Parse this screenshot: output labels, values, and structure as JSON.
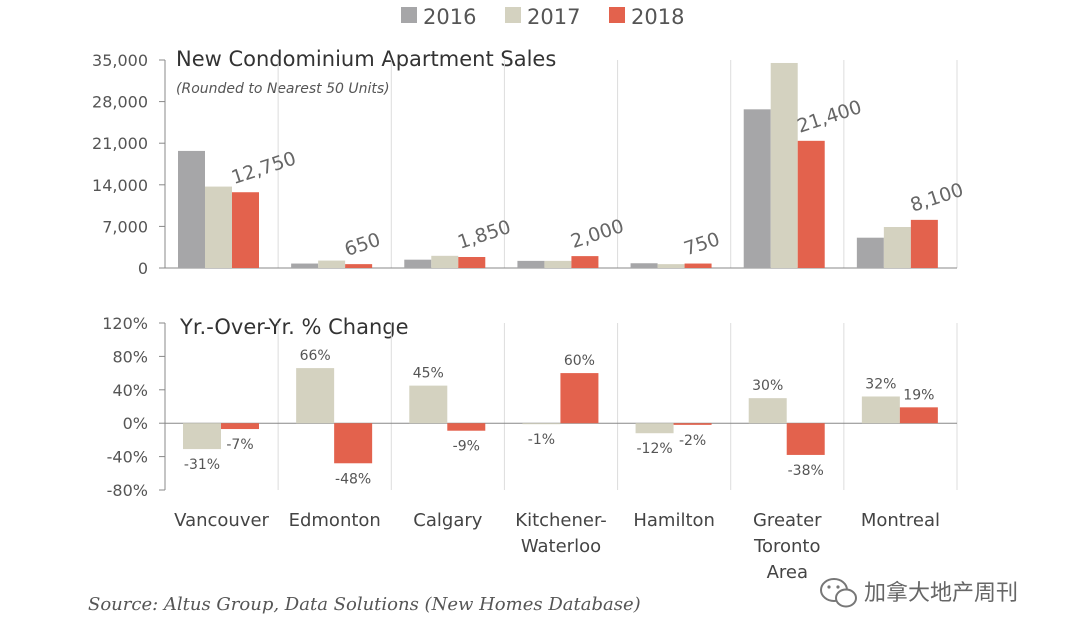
{
  "legend": [
    "2016",
    "2017",
    "2018"
  ],
  "colors": {
    "s2016": "#a6a6a8",
    "s2017": "#d4d2c0",
    "s2018": "#e3624d",
    "grid": "#dddddd",
    "axis": "#888888"
  },
  "source": "Source:  Altus Group, Data Solutions (New Homes Database)",
  "watermark": "加拿大地产周刊",
  "watermark_icon": "wechat-icon",
  "chart_data": [
    {
      "type": "bar",
      "title": "New Condominium Apartment Sales",
      "subtitle": "(Rounded to Nearest 50 Units)",
      "categories": [
        "Vancouver",
        "Edmonton",
        "Calgary",
        "Kitchener-Waterloo",
        "Hamilton",
        "Greater Toronto Area",
        "Montreal"
      ],
      "category_lines": [
        [
          "Vancouver"
        ],
        [
          "Edmonton"
        ],
        [
          "Calgary"
        ],
        [
          "Kitchener-",
          "Waterloo"
        ],
        [
          "Hamilton"
        ],
        [
          "Greater",
          "Toronto",
          "Area"
        ],
        [
          "Montreal"
        ]
      ],
      "series": [
        {
          "name": "2016",
          "values": [
            19700,
            750,
            1400,
            1200,
            800,
            26700,
            5100
          ]
        },
        {
          "name": "2017",
          "values": [
            13700,
            1250,
            2050,
            1200,
            650,
            34500,
            6900
          ]
        },
        {
          "name": "2018",
          "values": [
            12750,
            650,
            1850,
            2000,
            750,
            21400,
            8100
          ]
        }
      ],
      "data_labels": [
        "12,750",
        "650",
        "1,850",
        "2,000",
        "750",
        "21,400",
        "8,100"
      ],
      "yticks": [
        "0",
        "7,000",
        "14,000",
        "21,000",
        "28,000",
        "35,000"
      ],
      "ylim": [
        0,
        35000
      ],
      "grid": "vertical separators"
    },
    {
      "type": "bar",
      "title": "Yr.-Over-Yr. % Change",
      "categories": [
        "Vancouver",
        "Edmonton",
        "Calgary",
        "Kitchener-Waterloo",
        "Hamilton",
        "Greater Toronto Area",
        "Montreal"
      ],
      "series": [
        {
          "name": "2017",
          "values": [
            -31,
            66,
            45,
            -1,
            -12,
            30,
            32
          ],
          "labels": [
            "-31%",
            "66%",
            "45%",
            "-1%",
            "-12%",
            "30%",
            "32%"
          ]
        },
        {
          "name": "2018",
          "values": [
            -7,
            -48,
            -9,
            60,
            -2,
            -38,
            19
          ],
          "labels": [
            "-7%",
            "-48%",
            "-9%",
            "60%",
            "-2%",
            "-38%",
            "19%"
          ]
        }
      ],
      "yticks": [
        "-80%",
        "-40%",
        "0%",
        "40%",
        "80%",
        "120%"
      ],
      "ylim": [
        -80,
        120
      ],
      "grid": "vertical separators"
    }
  ]
}
